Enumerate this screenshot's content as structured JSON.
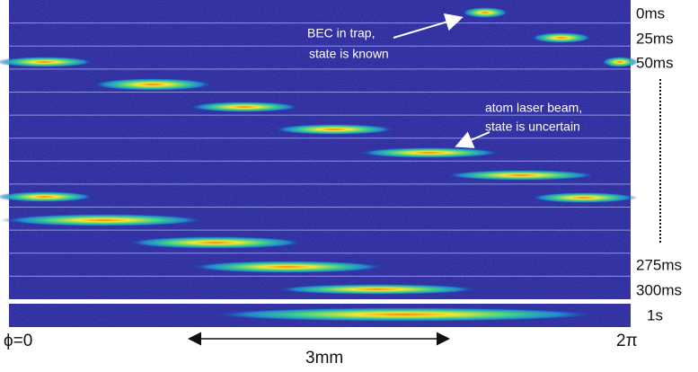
{
  "time_labels": [
    "0ms",
    "25ms",
    "50ms",
    "275ms",
    "300ms",
    "1s"
  ],
  "annotations": [
    {
      "lines": [
        "BEC in trap,",
        "state is known"
      ]
    },
    {
      "lines": [
        "atom laser beam,",
        "state is uncertain"
      ]
    }
  ],
  "phase_start": "ϕ=0",
  "phase_end": "2π",
  "scale_label": "3mm"
}
